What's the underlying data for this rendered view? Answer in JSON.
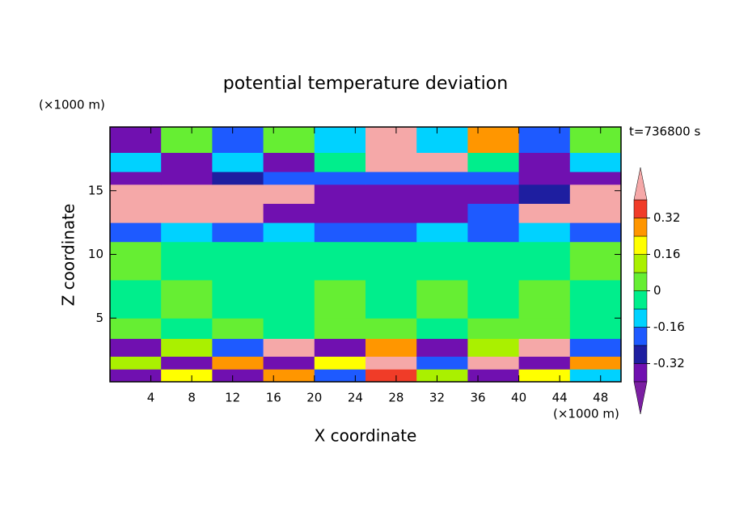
{
  "chart_data": {
    "type": "contour",
    "title": "potential temperature deviation",
    "xlabel": "X coordinate",
    "ylabel": "Z coordinate",
    "x_unit": "(×1000 m)",
    "y_unit": "(×1000 m)",
    "annotation": "t=736800 s",
    "xlim": [
      0,
      50
    ],
    "ylim": [
      0,
      20
    ],
    "xticks": [
      4,
      8,
      12,
      16,
      20,
      24,
      28,
      32,
      36,
      40,
      44,
      48
    ],
    "yticks": [
      5,
      10,
      15
    ],
    "x_edges": [
      0,
      5,
      10,
      15,
      20,
      25,
      30,
      35,
      40,
      45,
      50
    ],
    "y_edges": [
      0,
      1,
      2,
      3.4,
      5,
      8,
      11,
      12.5,
      14,
      15.5,
      16.5,
      18,
      20
    ],
    "z": [
      [
        -0.36,
        0.2,
        -0.36,
        0.3,
        -0.2,
        0.36,
        0.1,
        -0.36,
        0.2,
        -0.1
      ],
      [
        0.1,
        -0.36,
        0.3,
        -0.36,
        0.2,
        0.44,
        -0.2,
        0.44,
        -0.36,
        0.3
      ],
      [
        -0.36,
        0.1,
        -0.2,
        0.44,
        -0.36,
        0.3,
        -0.36,
        0.1,
        0.44,
        -0.2
      ],
      [
        0.04,
        -0.04,
        0.04,
        -0.04,
        0.04,
        0.04,
        -0.04,
        0.04,
        0.04,
        -0.04
      ],
      [
        -0.04,
        0.04,
        -0.04,
        -0.04,
        0.04,
        -0.04,
        0.04,
        -0.04,
        0.04,
        -0.04
      ],
      [
        0.04,
        -0.04,
        -0.04,
        -0.04,
        -0.04,
        -0.04,
        -0.04,
        -0.04,
        -0.04,
        0.04
      ],
      [
        -0.2,
        -0.12,
        -0.2,
        -0.12,
        -0.2,
        -0.2,
        -0.12,
        -0.2,
        -0.12,
        -0.2
      ],
      [
        0.44,
        0.44,
        0.44,
        -0.36,
        -0.36,
        -0.36,
        -0.36,
        -0.2,
        0.44,
        0.44
      ],
      [
        0.44,
        0.44,
        0.44,
        0.44,
        -0.36,
        -0.36,
        -0.36,
        -0.36,
        -0.28,
        0.44
      ],
      [
        -0.36,
        -0.36,
        -0.28,
        -0.2,
        -0.2,
        -0.2,
        -0.2,
        -0.2,
        -0.36,
        -0.36
      ],
      [
        -0.12,
        -0.36,
        -0.12,
        -0.36,
        -0.04,
        0.44,
        0.44,
        -0.04,
        -0.36,
        -0.12
      ],
      [
        -0.36,
        0.04,
        -0.2,
        0.04,
        -0.12,
        0.44,
        -0.12,
        0.28,
        -0.2,
        0.04
      ]
    ],
    "levels": [
      -0.4,
      -0.32,
      -0.24,
      -0.16,
      -0.08,
      0,
      0.08,
      0.16,
      0.24,
      0.32,
      0.4
    ],
    "colors": [
      "#7b1fa2",
      "#7010b0",
      "#1e1ea0",
      "#1e5aff",
      "#00d2ff",
      "#00ee8c",
      "#66ee33",
      "#aaf000",
      "#ffff00",
      "#ff9600",
      "#f03c28",
      "#f5a8a8"
    ],
    "colorbar_ticks": [
      -0.32,
      -0.16,
      0,
      0.16,
      0.32
    ]
  }
}
